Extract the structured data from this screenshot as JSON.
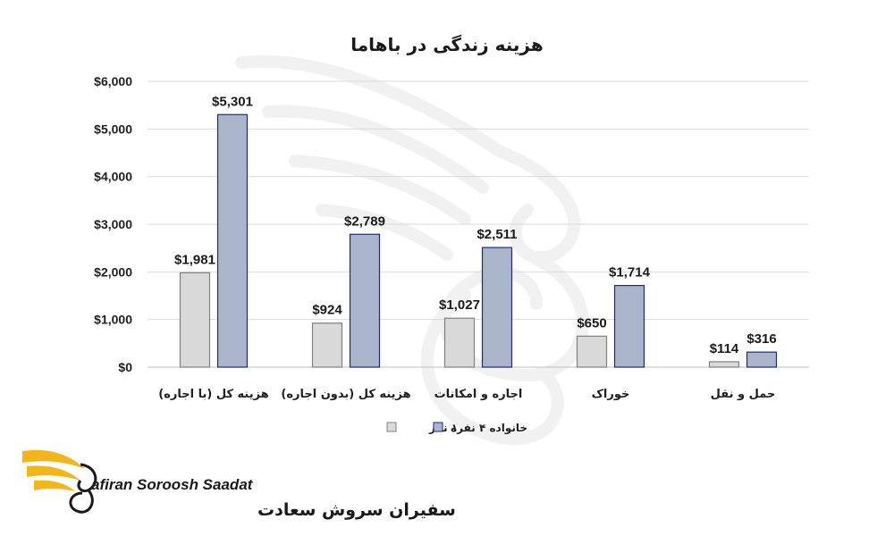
{
  "chart_data": {
    "type": "bar",
    "title": "هزینه زندگی در باهاما",
    "categories": [
      "هزینه کل (با اجاره)",
      "هزینه کل (بدون اجاره)",
      "اجاره و امکانات",
      "خوراک",
      "حمل و نقل"
    ],
    "series": [
      {
        "name": "۱ نفر",
        "values": [
          1981,
          924,
          1027,
          650,
          114
        ],
        "labels": [
          "$1,981",
          "$924",
          "$1,027",
          "$650",
          "$114"
        ],
        "color": "#d9d9d9",
        "stroke": "#7f7f7f"
      },
      {
        "name": "خانواده ۴ نفره",
        "values": [
          5301,
          2789,
          2511,
          1714,
          316
        ],
        "labels": [
          "$5,301",
          "$2,789",
          "$2,511",
          "$1,714",
          "$316"
        ],
        "color": "#aab4cb",
        "stroke": "#1f2d6b"
      }
    ],
    "ylim": [
      0,
      6000
    ],
    "yticks": [
      0,
      1000,
      2000,
      3000,
      4000,
      5000,
      6000
    ],
    "ytick_labels": [
      "$0",
      "$1,000",
      "$2,000",
      "$3,000",
      "$4,000",
      "$5,000",
      "$6,000"
    ],
    "xlabel": "",
    "ylabel": "",
    "grid": true,
    "legend_position": "bottom"
  },
  "logo": {
    "name_en": "afiran Soroosh Saadat",
    "name_fa": "سفیران سروش سعادت",
    "accent_color": "#f2b51c"
  },
  "watermark": {
    "icon": "wing-swan-watermark-icon"
  }
}
